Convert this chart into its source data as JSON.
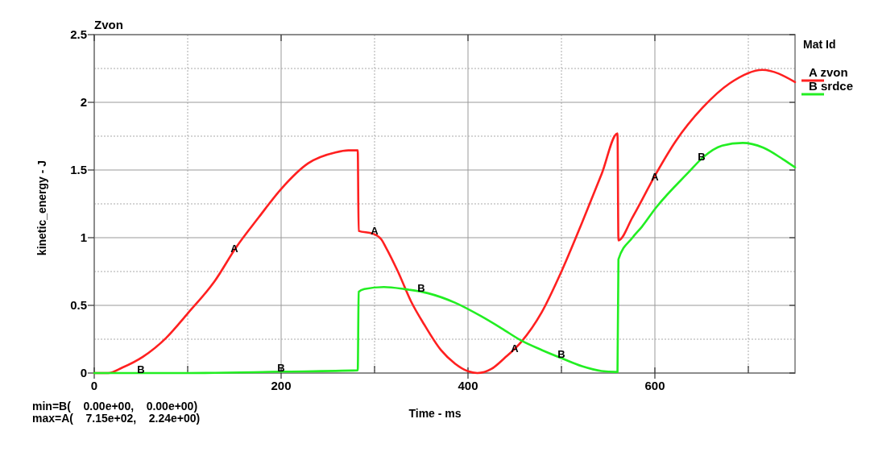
{
  "chart_data": {
    "type": "line",
    "title": "Zvon",
    "xlabel": "Time - ms",
    "ylabel": "kinetic_energy - J",
    "legend_title": "Mat Id",
    "xlim": [
      0,
      750
    ],
    "ylim": [
      0,
      2.5
    ],
    "xticks": [
      0,
      {
        "value": 100,
        "label": null
      },
      200,
      {
        "value": 300,
        "label": null
      },
      400,
      {
        "value": 500,
        "label": null
      },
      600,
      {
        "value": 700,
        "label": null
      }
    ],
    "yticks": [
      0,
      {
        "value": 0.25,
        "label": null
      },
      0.5,
      {
        "value": 0.75,
        "label": null
      },
      1,
      {
        "value": 1.25,
        "label": null
      },
      1.5,
      {
        "value": 1.75,
        "label": null
      },
      2,
      {
        "value": 2.25,
        "label": null
      },
      2.5
    ],
    "grid": true,
    "legend": "top right",
    "series": [
      {
        "name": "A zvon",
        "color": "#ff2020",
        "x": [
          0,
          15,
          30,
          52,
          77,
          100,
          129,
          152,
          176,
          200,
          229,
          258,
          272,
          282,
          283,
          298,
          307,
          312,
          325,
          339,
          353,
          371,
          386,
          400,
          410,
          425,
          439,
          457,
          479,
          500,
          522,
          543,
          560,
          561,
          576,
          601,
          622,
          651,
          680,
          715,
          750
        ],
        "values": [
          0,
          0,
          0.04,
          0.12,
          0.26,
          0.44,
          0.68,
          0.93,
          1.15,
          1.36,
          1.55,
          1.63,
          1.645,
          1.645,
          1.05,
          1.03,
          0.99,
          0.93,
          0.75,
          0.53,
          0.36,
          0.17,
          0.07,
          0.013,
          0,
          0.03,
          0.11,
          0.23,
          0.45,
          0.75,
          1.11,
          1.47,
          1.77,
          0.98,
          1.15,
          1.47,
          1.71,
          1.96,
          2.14,
          2.24,
          2.15
        ]
      },
      {
        "name": "B srdce",
        "color": "#22ee22",
        "x": [
          0,
          100,
          200,
          282,
          283,
          289,
          310,
          332,
          357,
          386,
          414,
          436,
          457,
          479,
          500,
          522,
          543,
          560,
          561,
          576,
          586,
          601,
          637,
          651,
          672,
          694,
          716,
          737,
          750
        ],
        "values": [
          0,
          0,
          0.01,
          0.02,
          0.6,
          0.62,
          0.635,
          0.62,
          0.59,
          0.52,
          0.42,
          0.33,
          0.24,
          0.17,
          0.11,
          0.05,
          0.015,
          0.008,
          0.84,
          1.0,
          1.08,
          1.22,
          1.49,
          1.59,
          1.68,
          1.7,
          1.665,
          1.58,
          1.52
        ]
      }
    ],
    "annotations": [
      {
        "text": "A",
        "x": 150,
        "y": 0.92
      },
      {
        "text": "A",
        "x": 300,
        "y": 1.05
      },
      {
        "text": "A",
        "x": 450,
        "y": 0.18
      },
      {
        "text": "A",
        "x": 600,
        "y": 1.45
      },
      {
        "text": "B",
        "x": 50,
        "y": 0.03
      },
      {
        "text": "B",
        "x": 200,
        "y": 0.04
      },
      {
        "text": "B",
        "x": 350,
        "y": 0.63
      },
      {
        "text": "B",
        "x": 500,
        "y": 0.14
      },
      {
        "text": "B",
        "x": 650,
        "y": 1.6
      },
      "min=B(    0.00e+00,    0.00e+00)",
      "max=A(    7.15e+02,    2.24e+00)"
    ]
  }
}
